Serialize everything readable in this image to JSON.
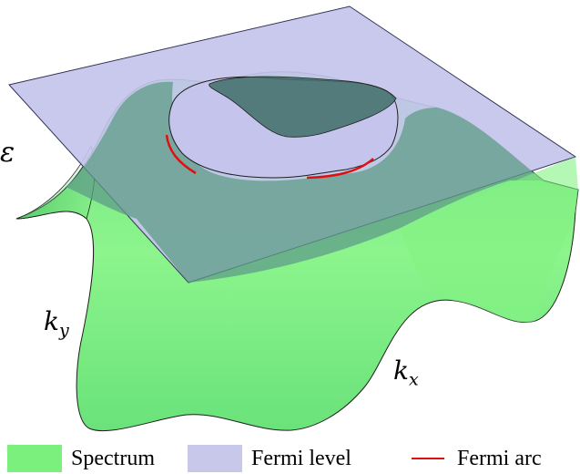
{
  "labels": {
    "energy": "ε",
    "ky_base": "k",
    "ky_sub": "y",
    "kx_base": "k",
    "kx_sub": "x"
  },
  "legend": [
    {
      "label": "Spectrum",
      "color": "#7cf07c",
      "kind": "swatch"
    },
    {
      "label": "Fermi level",
      "color": "#c8c8ea",
      "kind": "swatch"
    },
    {
      "label": "Fermi arc",
      "color": "#e01010",
      "kind": "line"
    }
  ],
  "colors": {
    "spectrum_fill": "#86f286",
    "spectrum_shadow": "#3fae5a",
    "plane_fill": "#b8b8e6",
    "plane_over_spectrum": "#4f8a78",
    "arc": "#e01010",
    "outline": "#222222"
  }
}
